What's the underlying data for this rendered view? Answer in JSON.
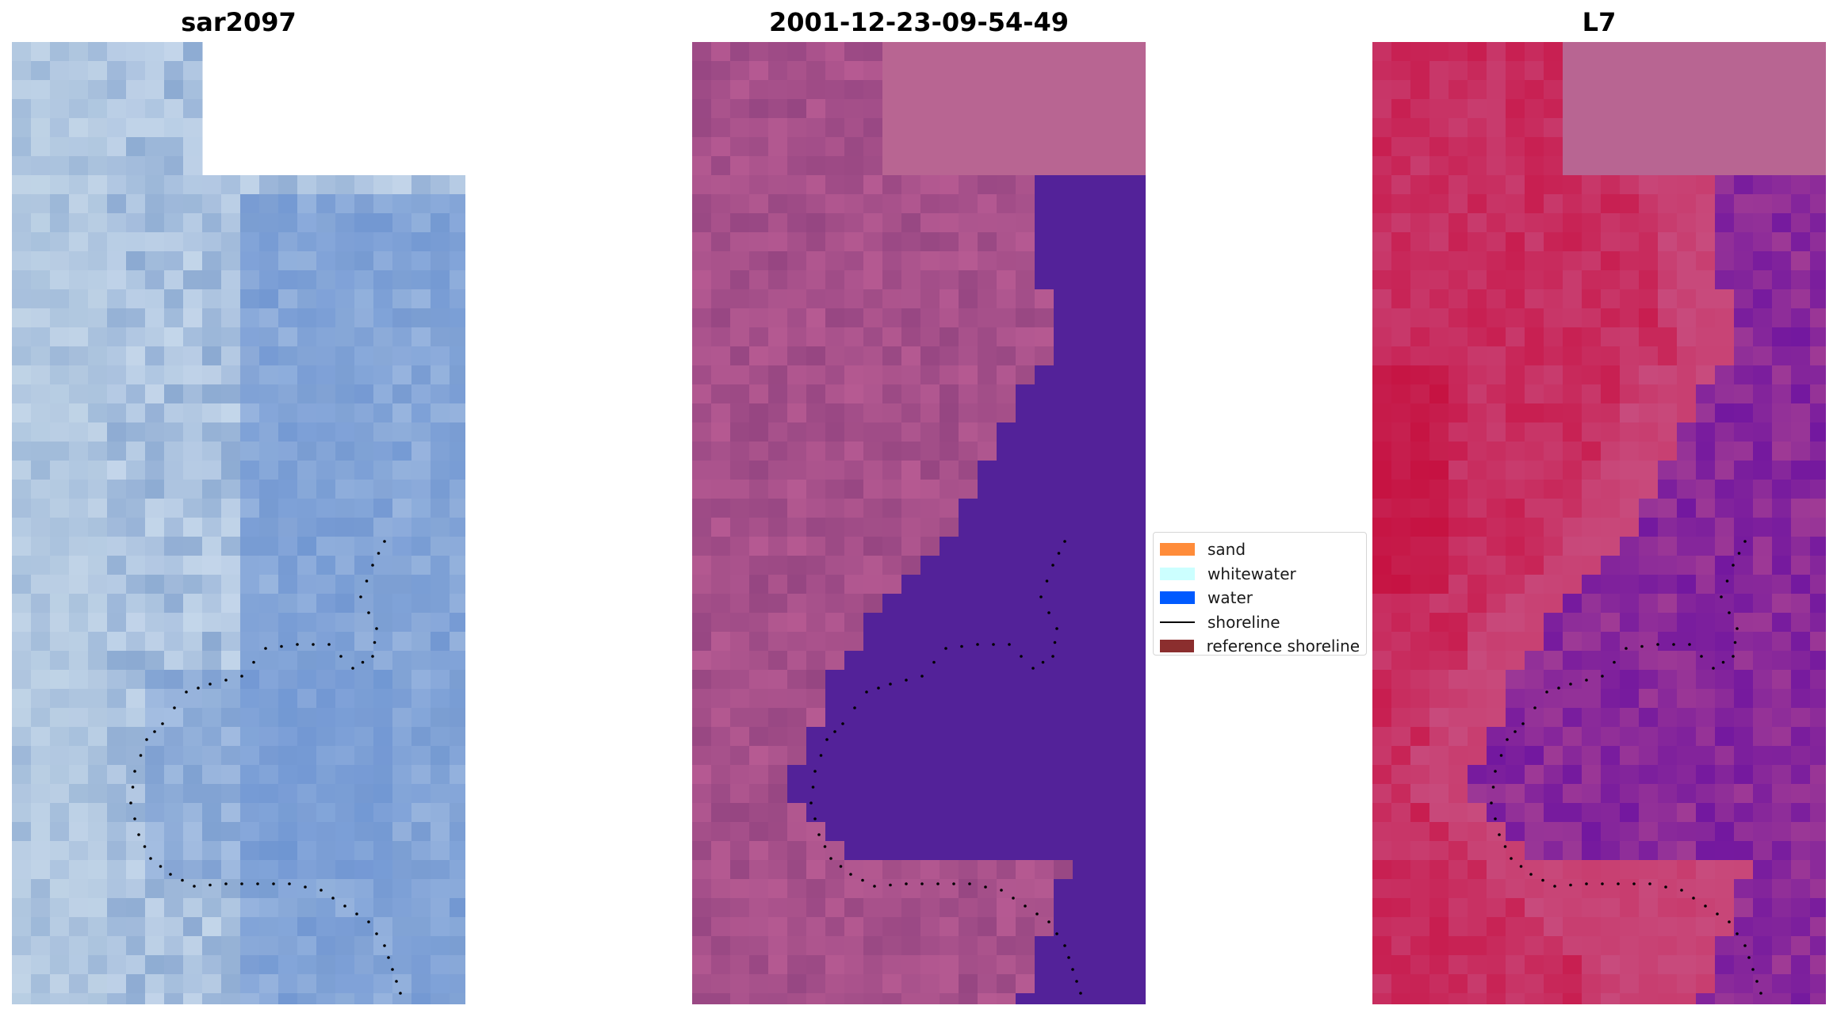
{
  "titles": {
    "left": "sar2097",
    "center": "2001-12-23-09-54-49",
    "right": "L7"
  },
  "legend": {
    "items": [
      {
        "label": "sand",
        "type": "patch",
        "color": "#ff8c3a"
      },
      {
        "label": "whitewater",
        "type": "patch",
        "color": "#ccffff"
      },
      {
        "label": "water",
        "type": "patch",
        "color": "#005aff"
      },
      {
        "label": "shoreline",
        "type": "line",
        "color": "#000000"
      },
      {
        "label": "reference shoreline",
        "type": "patch",
        "color": "#8b2e2e"
      }
    ]
  },
  "colors": {
    "nodata_block": "#b86592",
    "classified_water": "#532299",
    "shoreline_points": "#000000"
  }
}
